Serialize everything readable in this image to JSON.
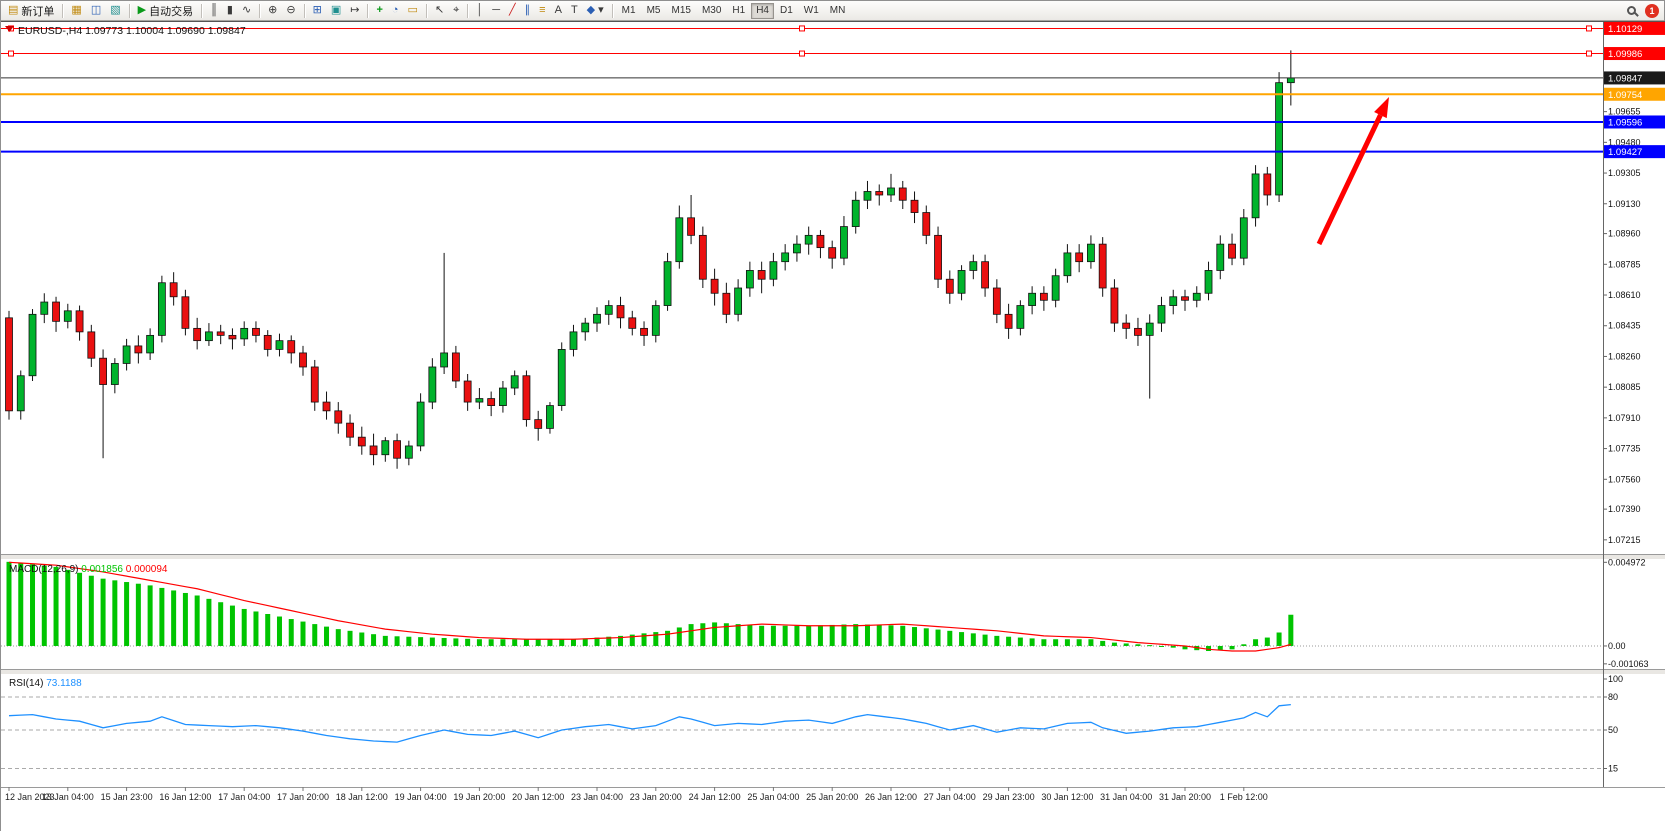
{
  "toolbar": {
    "new_order": "新订单",
    "auto_trading": "自动交易",
    "timeframes": [
      "M1",
      "M5",
      "M15",
      "M30",
      "H1",
      "H4",
      "D1",
      "W1",
      "MN"
    ],
    "active_timeframe": "H4",
    "badge_count": "1"
  },
  "icons": {
    "new_order": "▤",
    "market_watch": "▦",
    "data_window": "◫",
    "navigator": "▧",
    "play": "▶",
    "bars": "║",
    "candles": "▮",
    "line": "∿",
    "zoom_in": "⊕",
    "zoom_out": "⊖",
    "tile": "⊞",
    "arrange": "▣",
    "shift": "↦",
    "new_chart": "+",
    "period": "◔",
    "template": "▭",
    "cursor": "↖",
    "crosshair": "⌖",
    "vline": "│",
    "hline": "─",
    "trendline": "╱",
    "channel": "∥",
    "fibo": "≡",
    "text": "A",
    "label": "T",
    "shapes": "◆",
    "dropdown": "▾"
  },
  "chart": {
    "title": "EURUSD-,H4 1.09773 1.10004 1.09690 1.09847"
  },
  "chart_data": {
    "type": "candlestick",
    "symbol": "EURUSD-",
    "timeframe": "H4",
    "ohlc_display": {
      "open": "1.09773",
      "high": "1.10004",
      "low": "1.09690",
      "close": "1.09847"
    },
    "ylim": [
      1.0714,
      1.1016
    ],
    "colors": {
      "up": "#00b32c",
      "down": "#ea1010",
      "wick": "#111111",
      "macd_hist": "#00c400",
      "macd_signal": "#ff0000",
      "rsi": "#1e90ff",
      "bid": "#1a1a1a",
      "arrow": "#ff0000"
    },
    "candles": [
      [
        1.0848,
        1.0852,
        1.079,
        1.0795
      ],
      [
        1.0795,
        1.0818,
        1.079,
        1.0815
      ],
      [
        1.0815,
        1.0853,
        1.0812,
        1.085
      ],
      [
        1.085,
        1.0862,
        1.0845,
        1.0857
      ],
      [
        1.0857,
        1.086,
        1.084,
        1.0846
      ],
      [
        1.0846,
        1.0856,
        1.0842,
        1.0852
      ],
      [
        1.0852,
        1.0855,
        1.0835,
        1.084
      ],
      [
        1.084,
        1.0844,
        1.082,
        1.0825
      ],
      [
        1.0825,
        1.083,
        1.0768,
        1.081
      ],
      [
        1.081,
        1.0825,
        1.0805,
        1.0822
      ],
      [
        1.0822,
        1.0836,
        1.0818,
        1.0832
      ],
      [
        1.0832,
        1.0838,
        1.0822,
        1.0828
      ],
      [
        1.0828,
        1.0842,
        1.0824,
        1.0838
      ],
      [
        1.0838,
        1.0872,
        1.0834,
        1.0868
      ],
      [
        1.0868,
        1.0874,
        1.0855,
        1.086
      ],
      [
        1.086,
        1.0864,
        1.0838,
        1.0842
      ],
      [
        1.0842,
        1.0848,
        1.083,
        1.0835
      ],
      [
        1.0835,
        1.0845,
        1.0832,
        1.084
      ],
      [
        1.084,
        1.0844,
        1.0833,
        1.0838
      ],
      [
        1.0838,
        1.0842,
        1.083,
        1.0836
      ],
      [
        1.0836,
        1.0846,
        1.0832,
        1.0842
      ],
      [
        1.0842,
        1.0846,
        1.0834,
        1.0838
      ],
      [
        1.0838,
        1.0841,
        1.0826,
        1.083
      ],
      [
        1.083,
        1.0839,
        1.0826,
        1.0835
      ],
      [
        1.0835,
        1.0838,
        1.0822,
        1.0828
      ],
      [
        1.0828,
        1.0832,
        1.0815,
        1.082
      ],
      [
        1.082,
        1.0824,
        1.0795,
        1.08
      ],
      [
        1.08,
        1.0806,
        1.079,
        1.0795
      ],
      [
        1.0795,
        1.08,
        1.0782,
        1.0788
      ],
      [
        1.0788,
        1.0793,
        1.0775,
        1.078
      ],
      [
        1.078,
        1.0786,
        1.077,
        1.0775
      ],
      [
        1.0775,
        1.0782,
        1.0764,
        1.077
      ],
      [
        1.077,
        1.078,
        1.0766,
        1.0778
      ],
      [
        1.0778,
        1.0782,
        1.0762,
        1.0768
      ],
      [
        1.0768,
        1.0778,
        1.0764,
        1.0775
      ],
      [
        1.0775,
        1.0805,
        1.0772,
        1.08
      ],
      [
        1.08,
        1.0825,
        1.0796,
        1.082
      ],
      [
        1.082,
        1.0885,
        1.0816,
        1.0828
      ],
      [
        1.0828,
        1.0832,
        1.0808,
        1.0812
      ],
      [
        1.0812,
        1.0816,
        1.0795,
        1.08
      ],
      [
        1.08,
        1.0808,
        1.0796,
        1.0802
      ],
      [
        1.0802,
        1.0806,
        1.0792,
        1.0798
      ],
      [
        1.0798,
        1.0812,
        1.0794,
        1.0808
      ],
      [
        1.0808,
        1.0818,
        1.0804,
        1.0815
      ],
      [
        1.0815,
        1.0818,
        1.0786,
        1.079
      ],
      [
        1.079,
        1.0795,
        1.0778,
        1.0785
      ],
      [
        1.0785,
        1.08,
        1.0782,
        1.0798
      ],
      [
        1.0798,
        1.0834,
        1.0795,
        1.083
      ],
      [
        1.083,
        1.0844,
        1.0826,
        1.084
      ],
      [
        1.084,
        1.0848,
        1.0835,
        1.0845
      ],
      [
        1.0845,
        1.0854,
        1.084,
        1.085
      ],
      [
        1.085,
        1.0858,
        1.0844,
        1.0855
      ],
      [
        1.0855,
        1.086,
        1.0842,
        1.0848
      ],
      [
        1.0848,
        1.0852,
        1.0838,
        1.0842
      ],
      [
        1.0842,
        1.0846,
        1.0832,
        1.0838
      ],
      [
        1.0838,
        1.0858,
        1.0834,
        1.0855
      ],
      [
        1.0855,
        1.0885,
        1.0852,
        1.088
      ],
      [
        1.088,
        1.0912,
        1.0876,
        1.0905
      ],
      [
        1.0905,
        1.0918,
        1.089,
        1.0895
      ],
      [
        1.0895,
        1.09,
        1.0865,
        1.087
      ],
      [
        1.087,
        1.0876,
        1.0855,
        1.0862
      ],
      [
        1.0862,
        1.0868,
        1.0845,
        1.085
      ],
      [
        1.085,
        1.087,
        1.0846,
        1.0865
      ],
      [
        1.0865,
        1.088,
        1.086,
        1.0875
      ],
      [
        1.0875,
        1.088,
        1.0862,
        1.087
      ],
      [
        1.087,
        1.0885,
        1.0866,
        1.088
      ],
      [
        1.088,
        1.089,
        1.0875,
        1.0885
      ],
      [
        1.0885,
        1.0895,
        1.088,
        1.089
      ],
      [
        1.089,
        1.09,
        1.0884,
        1.0895
      ],
      [
        1.0895,
        1.0898,
        1.0882,
        1.0888
      ],
      [
        1.0888,
        1.0892,
        1.0876,
        1.0882
      ],
      [
        1.0882,
        1.0906,
        1.0878,
        1.09
      ],
      [
        1.09,
        1.092,
        1.0896,
        1.0915
      ],
      [
        1.0915,
        1.0926,
        1.091,
        1.092
      ],
      [
        1.092,
        1.0924,
        1.0912,
        1.0918
      ],
      [
        1.0918,
        1.093,
        1.0914,
        1.0922
      ],
      [
        1.0922,
        1.0926,
        1.091,
        1.0915
      ],
      [
        1.0915,
        1.092,
        1.0902,
        1.0908
      ],
      [
        1.0908,
        1.0912,
        1.089,
        1.0895
      ],
      [
        1.0895,
        1.09,
        1.0865,
        1.087
      ],
      [
        1.087,
        1.0875,
        1.0856,
        1.0862
      ],
      [
        1.0862,
        1.0878,
        1.0858,
        1.0875
      ],
      [
        1.0875,
        1.0884,
        1.087,
        1.088
      ],
      [
        1.088,
        1.0884,
        1.086,
        1.0865
      ],
      [
        1.0865,
        1.087,
        1.0845,
        1.085
      ],
      [
        1.085,
        1.0856,
        1.0836,
        1.0842
      ],
      [
        1.0842,
        1.0858,
        1.0838,
        1.0855
      ],
      [
        1.0855,
        1.0866,
        1.085,
        1.0862
      ],
      [
        1.0862,
        1.0866,
        1.0852,
        1.0858
      ],
      [
        1.0858,
        1.0876,
        1.0854,
        1.0872
      ],
      [
        1.0872,
        1.089,
        1.0868,
        1.0885
      ],
      [
        1.0885,
        1.089,
        1.0874,
        1.088
      ],
      [
        1.088,
        1.0895,
        1.0876,
        1.089
      ],
      [
        1.089,
        1.0894,
        1.086,
        1.0865
      ],
      [
        1.0865,
        1.087,
        1.084,
        1.0845
      ],
      [
        1.0845,
        1.085,
        1.0836,
        1.0842
      ],
      [
        1.0842,
        1.0848,
        1.0832,
        1.0838
      ],
      [
        1.0838,
        1.085,
        1.0802,
        1.0845
      ],
      [
        1.0845,
        1.086,
        1.084,
        1.0855
      ],
      [
        1.0855,
        1.0864,
        1.085,
        1.086
      ],
      [
        1.086,
        1.0864,
        1.0852,
        1.0858
      ],
      [
        1.0858,
        1.0866,
        1.0854,
        1.0862
      ],
      [
        1.0862,
        1.088,
        1.0858,
        1.0875
      ],
      [
        1.0875,
        1.0895,
        1.087,
        1.089
      ],
      [
        1.089,
        1.0896,
        1.0878,
        1.0882
      ],
      [
        1.0882,
        1.091,
        1.0878,
        1.0905
      ],
      [
        1.0905,
        1.0935,
        1.09,
        1.093
      ],
      [
        1.093,
        1.0934,
        1.0912,
        1.0918
      ],
      [
        1.0918,
        1.0988,
        1.0914,
        1.0982
      ],
      [
        1.0982,
        1.10004,
        1.0969,
        1.09847
      ]
    ],
    "hlines": [
      {
        "price": 1.10129,
        "label": "1.10129",
        "color": "#ff0000",
        "width": 1,
        "handles": true
      },
      {
        "price": 1.09986,
        "label": "1.09986",
        "color": "#ff0000",
        "width": 1,
        "handles": true
      },
      {
        "price": 1.09754,
        "label": "1.09754",
        "color": "#ffa500",
        "width": 2,
        "handles": false
      },
      {
        "price": 1.09596,
        "label": "1.09596",
        "color": "#0000ff",
        "width": 2,
        "handles": false
      },
      {
        "price": 1.09427,
        "label": "1.09427",
        "color": "#0000ff",
        "width": 2,
        "handles": false
      }
    ],
    "bid": {
      "price": 1.09847,
      "label": "1.09847"
    },
    "price_ticks": [
      "1.09655",
      "1.09480",
      "1.09305",
      "1.09130",
      "1.08960",
      "1.08785",
      "1.08610",
      "1.08435",
      "1.08260",
      "1.08085",
      "1.07910",
      "1.07735",
      "1.07560",
      "1.07390",
      "1.07215"
    ],
    "time_labels": [
      "12 Jan 2023",
      "13 Jan 04:00",
      "15 Jan 23:00",
      "16 Jan 12:00",
      "17 Jan 04:00",
      "17 Jan 20:00",
      "18 Jan 12:00",
      "19 Jan 04:00",
      "19 Jan 20:00",
      "20 Jan 12:00",
      "23 Jan 04:00",
      "23 Jan 20:00",
      "24 Jan 12:00",
      "25 Jan 04:00",
      "25 Jan 20:00",
      "26 Jan 12:00",
      "27 Jan 04:00",
      "29 Jan 23:00",
      "30 Jan 12:00",
      "31 Jan 04:00",
      "31 Jan 20:00",
      "1 Feb 12:00"
    ],
    "macd": {
      "name": "MACD(12,26,9)",
      "value_main": "0.001856",
      "value_signal": "0.000094",
      "range": [
        -0.00125,
        0.00505
      ],
      "scale_labels": [
        "0.004972",
        "0.00",
        "-0.001063"
      ],
      "hist_keyframes": [
        [
          0,
          0.005
        ],
        [
          4,
          0.0047
        ],
        [
          8,
          0.004
        ],
        [
          12,
          0.0036
        ],
        [
          16,
          0.003
        ],
        [
          20,
          0.0022
        ],
        [
          24,
          0.0016
        ],
        [
          28,
          0.001
        ],
        [
          32,
          0.0006
        ],
        [
          36,
          0.0005
        ],
        [
          40,
          0.0004
        ],
        [
          44,
          0.0004
        ],
        [
          48,
          0.0004
        ],
        [
          52,
          0.0006
        ],
        [
          56,
          0.0009
        ],
        [
          58,
          0.0013
        ],
        [
          60,
          0.0014
        ],
        [
          64,
          0.0012
        ],
        [
          68,
          0.0012
        ],
        [
          72,
          0.0013
        ],
        [
          76,
          0.0012
        ],
        [
          80,
          0.0009
        ],
        [
          84,
          0.0006
        ],
        [
          88,
          0.0004
        ],
        [
          92,
          0.0004
        ],
        [
          94,
          0.0002
        ],
        [
          96,
          0.0001
        ],
        [
          98,
          0
        ],
        [
          100,
          -0.0002
        ],
        [
          102,
          -0.0003
        ],
        [
          104,
          -0.0002
        ],
        [
          105,
          0.0001
        ],
        [
          106,
          0.0004
        ],
        [
          107,
          0.0005
        ],
        [
          108,
          0.0008
        ],
        [
          109,
          0.001856
        ]
      ],
      "signal_keyframes": [
        [
          0,
          0.004972
        ],
        [
          4,
          0.0048
        ],
        [
          8,
          0.0044
        ],
        [
          12,
          0.0039
        ],
        [
          16,
          0.0034
        ],
        [
          20,
          0.0027
        ],
        [
          24,
          0.0021
        ],
        [
          28,
          0.0015
        ],
        [
          32,
          0.001
        ],
        [
          36,
          0.0007
        ],
        [
          40,
          0.0005
        ],
        [
          44,
          0.0004
        ],
        [
          48,
          0.0004
        ],
        [
          52,
          0.0005
        ],
        [
          56,
          0.0007
        ],
        [
          60,
          0.0011
        ],
        [
          64,
          0.0013
        ],
        [
          68,
          0.0012
        ],
        [
          72,
          0.0012
        ],
        [
          76,
          0.0013
        ],
        [
          80,
          0.0011
        ],
        [
          84,
          0.0009
        ],
        [
          88,
          0.0006
        ],
        [
          92,
          0.0005
        ],
        [
          96,
          0.0002
        ],
        [
          98,
          0.0001
        ],
        [
          100,
          0
        ],
        [
          102,
          -0.0002
        ],
        [
          104,
          -0.0003
        ],
        [
          106,
          -0.0003
        ],
        [
          108,
          -0.0001
        ],
        [
          109,
          9.4e-05
        ]
      ]
    },
    "rsi": {
      "name": "RSI(14)",
      "value": "73.1188",
      "scale_labels": [
        "100",
        "80",
        "50",
        "15"
      ],
      "levels": [
        80,
        50,
        15
      ],
      "keyframes": [
        [
          0,
          63
        ],
        [
          2,
          64
        ],
        [
          4,
          60
        ],
        [
          6,
          58
        ],
        [
          8,
          52
        ],
        [
          10,
          56
        ],
        [
          12,
          58
        ],
        [
          13,
          62
        ],
        [
          15,
          55
        ],
        [
          17,
          54
        ],
        [
          19,
          53
        ],
        [
          21,
          54
        ],
        [
          23,
          52
        ],
        [
          25,
          49
        ],
        [
          27,
          45
        ],
        [
          29,
          42
        ],
        [
          31,
          40
        ],
        [
          33,
          39
        ],
        [
          35,
          45
        ],
        [
          37,
          50
        ],
        [
          39,
          46
        ],
        [
          41,
          45
        ],
        [
          43,
          49
        ],
        [
          45,
          43
        ],
        [
          47,
          50
        ],
        [
          49,
          53
        ],
        [
          51,
          55
        ],
        [
          53,
          51
        ],
        [
          55,
          54
        ],
        [
          57,
          62
        ],
        [
          58,
          60
        ],
        [
          60,
          54
        ],
        [
          62,
          56
        ],
        [
          64,
          55
        ],
        [
          66,
          58
        ],
        [
          68,
          59
        ],
        [
          70,
          56
        ],
        [
          72,
          62
        ],
        [
          73,
          64
        ],
        [
          76,
          60
        ],
        [
          78,
          56
        ],
        [
          80,
          50
        ],
        [
          82,
          54
        ],
        [
          84,
          48
        ],
        [
          86,
          52
        ],
        [
          88,
          51
        ],
        [
          90,
          56
        ],
        [
          92,
          57
        ],
        [
          93,
          52
        ],
        [
          95,
          47
        ],
        [
          97,
          49
        ],
        [
          99,
          52
        ],
        [
          101,
          53
        ],
        [
          103,
          57
        ],
        [
          105,
          61
        ],
        [
          106,
          66
        ],
        [
          107,
          62
        ],
        [
          108,
          72
        ],
        [
          109,
          73.1
        ]
      ]
    },
    "arrow": {
      "from": [
        1318,
        243
      ],
      "to": [
        1388,
        96
      ]
    }
  }
}
